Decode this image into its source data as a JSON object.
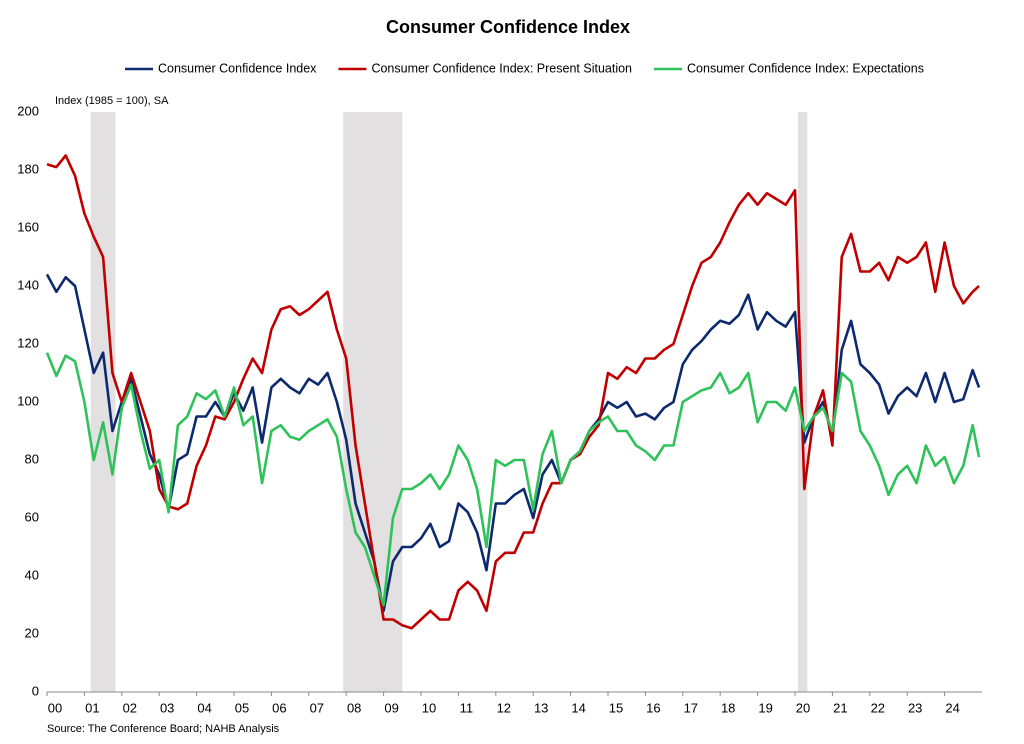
{
  "chart_data": {
    "type": "line",
    "title": "Consumer Confidence Index",
    "y_axis_label": "Index (1985 = 100), SA",
    "source": "Source: The Conference Board; NAHB Analysis",
    "grid": false,
    "legend": "top",
    "shade_color": "#e2e0e0",
    "recessions": [
      [
        1.17,
        1.83
      ],
      [
        7.92,
        9.5
      ],
      [
        20.08,
        20.33
      ]
    ],
    "xlim": [
      0,
      25
    ],
    "xticks": [
      {
        "value": 0,
        "label": "00"
      },
      {
        "value": 1,
        "label": "01"
      },
      {
        "value": 2,
        "label": "02"
      },
      {
        "value": 3,
        "label": "03"
      },
      {
        "value": 4,
        "label": "04"
      },
      {
        "value": 5,
        "label": "05"
      },
      {
        "value": 6,
        "label": "06"
      },
      {
        "value": 7,
        "label": "07"
      },
      {
        "value": 8,
        "label": "08"
      },
      {
        "value": 9,
        "label": "09"
      },
      10,
      11,
      12,
      13,
      14,
      15,
      16,
      17,
      18,
      19,
      20,
      21,
      22,
      23,
      24
    ],
    "ylim": [
      0,
      200
    ],
    "yticks": [
      0,
      20,
      40,
      60,
      80,
      100,
      120,
      140,
      160,
      180,
      200
    ],
    "x": [
      0,
      0.25,
      0.5,
      0.75,
      1,
      1.25,
      1.5,
      1.75,
      2,
      2.25,
      2.5,
      2.75,
      3,
      3.25,
      3.5,
      3.75,
      4,
      4.25,
      4.5,
      4.75,
      5,
      5.25,
      5.5,
      5.75,
      6,
      6.25,
      6.5,
      6.75,
      7,
      7.25,
      7.5,
      7.75,
      8,
      8.25,
      8.5,
      8.75,
      9,
      9.25,
      9.5,
      9.75,
      10,
      10.25,
      10.5,
      10.75,
      11,
      11.25,
      11.5,
      11.75,
      12,
      12.25,
      12.5,
      12.75,
      13,
      13.25,
      13.5,
      13.75,
      14,
      14.25,
      14.5,
      14.75,
      15,
      15.25,
      15.5,
      15.75,
      16,
      16.25,
      16.5,
      16.75,
      17,
      17.25,
      17.5,
      17.75,
      18,
      18.25,
      18.5,
      18.75,
      19,
      19.25,
      19.5,
      19.75,
      20,
      20.25,
      20.5,
      20.75,
      21,
      21.25,
      21.5,
      21.75,
      22,
      22.25,
      22.5,
      22.75,
      23,
      23.25,
      23.5,
      23.75,
      24,
      24.25,
      24.5,
      24.75,
      24.92
    ],
    "series": [
      {
        "name": "Consumer Confidence Index",
        "color": "#0d2a6e",
        "values": [
          144,
          138,
          143,
          140,
          125,
          110,
          117,
          90,
          100,
          108,
          95,
          82,
          75,
          63,
          80,
          82,
          95,
          95,
          100,
          95,
          103,
          97,
          105,
          86,
          105,
          108,
          105,
          103,
          108,
          106,
          110,
          100,
          87,
          65,
          55,
          45,
          28,
          45,
          50,
          50,
          53,
          58,
          50,
          52,
          65,
          62,
          55,
          42,
          65,
          65,
          68,
          70,
          60,
          75,
          80,
          72,
          80,
          83,
          90,
          94,
          100,
          98,
          100,
          95,
          96,
          94,
          98,
          100,
          113,
          118,
          121,
          125,
          128,
          127,
          130,
          137,
          125,
          131,
          128,
          126,
          131,
          86,
          95,
          100,
          88,
          118,
          128,
          113,
          110,
          106,
          96,
          102,
          105,
          102,
          110,
          100,
          110,
          100,
          101,
          111,
          105
        ]
      },
      {
        "name": "Consumer Confidence Index: Present Situation",
        "color": "#c00000",
        "values": [
          182,
          181,
          185,
          178,
          165,
          157,
          150,
          110,
          100,
          110,
          100,
          90,
          70,
          64,
          63,
          65,
          78,
          85,
          95,
          94,
          100,
          108,
          115,
          110,
          125,
          132,
          133,
          130,
          132,
          135,
          138,
          125,
          115,
          85,
          65,
          45,
          25,
          25,
          23,
          22,
          25,
          28,
          25,
          25,
          35,
          38,
          35,
          28,
          45,
          48,
          48,
          55,
          55,
          65,
          72,
          72,
          80,
          82,
          88,
          92,
          110,
          108,
          112,
          110,
          115,
          115,
          118,
          120,
          130,
          140,
          148,
          150,
          155,
          162,
          168,
          172,
          168,
          172,
          170,
          168,
          173,
          70,
          95,
          104,
          85,
          150,
          158,
          145,
          145,
          148,
          142,
          150,
          148,
          150,
          155,
          138,
          155,
          140,
          134,
          138,
          140
        ]
      },
      {
        "name": "Consumer Confidence Index: Expectations",
        "color": "#2fc25a",
        "values": [
          117,
          109,
          116,
          114,
          100,
          80,
          93,
          75,
          98,
          106,
          90,
          77,
          80,
          62,
          92,
          95,
          103,
          101,
          104,
          95,
          105,
          92,
          95,
          72,
          90,
          92,
          88,
          87,
          90,
          92,
          94,
          88,
          70,
          55,
          50,
          40,
          30,
          60,
          70,
          70,
          72,
          75,
          70,
          75,
          85,
          80,
          70,
          50,
          80,
          78,
          80,
          80,
          63,
          82,
          90,
          72,
          80,
          83,
          90,
          93,
          95,
          90,
          90,
          85,
          83,
          80,
          85,
          85,
          100,
          102,
          104,
          105,
          110,
          103,
          105,
          110,
          93,
          100,
          100,
          97,
          105,
          90,
          95,
          98,
          90,
          110,
          107,
          90,
          85,
          78,
          68,
          75,
          78,
          72,
          85,
          78,
          81,
          72,
          78,
          92,
          81
        ]
      }
    ]
  }
}
